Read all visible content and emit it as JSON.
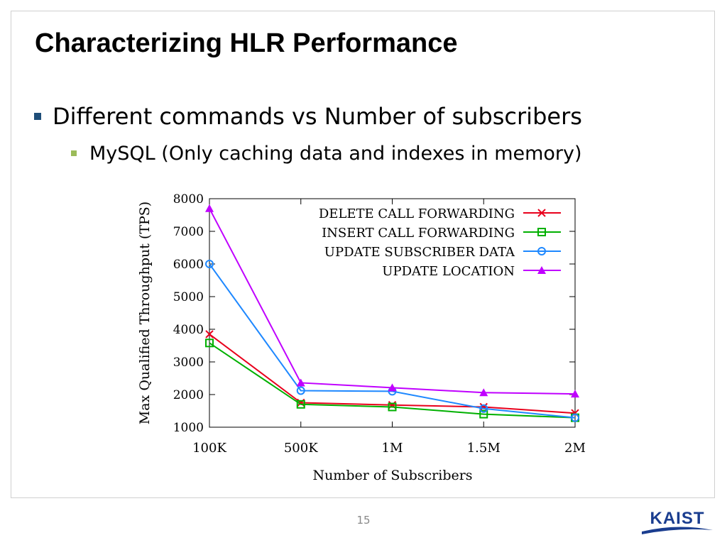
{
  "slide": {
    "title": "Characterizing HLR Performance",
    "bullet1": "Different commands vs Number of subscribers",
    "bullet2": "MySQL (Only caching data and indexes in memory)",
    "page_number": "15",
    "logo_text": "KAIST"
  },
  "colors": {
    "bullet1_marker": "#1f4e79",
    "bullet2_marker": "#9bbb59",
    "logo": "#1a3d8f"
  },
  "chart_data": {
    "type": "line",
    "xlabel": "Number of Subscribers",
    "ylabel": "Max Qualified Throughput (TPS)",
    "categories": [
      "100K",
      "500K",
      "1M",
      "1.5M",
      "2M"
    ],
    "ylim": [
      1000,
      8000
    ],
    "yticks": [
      "1000",
      "2000",
      "3000",
      "4000",
      "5000",
      "6000",
      "7000",
      "8000"
    ],
    "grid": false,
    "legend_position": "top-right",
    "series": [
      {
        "name": "DELETE CALL FORWARDING",
        "color": "#e8001c",
        "marker": "x",
        "values": [
          3850,
          1750,
          1680,
          1620,
          1430
        ]
      },
      {
        "name": "INSERT CALL FORWARDING",
        "color": "#00b000",
        "marker": "square",
        "values": [
          3580,
          1700,
          1620,
          1400,
          1290
        ]
      },
      {
        "name": "UPDATE SUBSCRIBER DATA",
        "color": "#1e88ff",
        "marker": "circle",
        "values": [
          6000,
          2120,
          2100,
          1570,
          1290
        ]
      },
      {
        "name": "UPDATE LOCATION",
        "color": "#c000ff",
        "marker": "triangle",
        "values": [
          7700,
          2360,
          2210,
          2060,
          2020
        ]
      }
    ]
  }
}
